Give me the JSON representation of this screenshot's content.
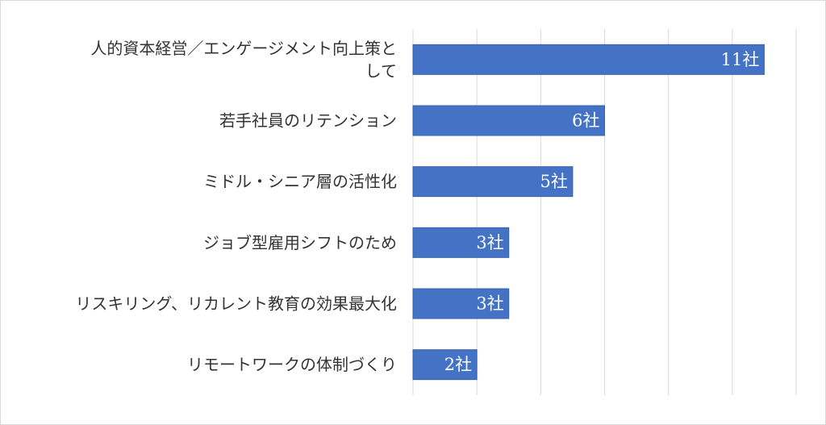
{
  "chart_data": {
    "type": "bar",
    "orientation": "horizontal",
    "title": "",
    "xlabel": "",
    "ylabel": "",
    "categories": [
      "人的資本経営／エンゲージメント向上策として",
      "若手社員のリテンション",
      "ミドル・シニア層の活性化",
      "ジョブ型雇用シフトのため",
      "リスキリング、リカレント教育の効果最大化",
      "リモートワークの体制づくり"
    ],
    "category_lines": [
      [
        "人的資本経営／エンゲージメント向上策と",
        "して"
      ],
      [
        "若手社員のリテンション"
      ],
      [
        "ミドル・シニア層の活性化"
      ],
      [
        "ジョブ型雇用シフトのため"
      ],
      [
        "リスキリング、リカレント教育の効果最大化"
      ],
      [
        "リモートワークの体制づくり"
      ]
    ],
    "values": [
      11,
      6,
      5,
      3,
      3,
      2
    ],
    "data_labels": [
      "11社",
      "6社",
      "5社",
      "3社",
      "3社",
      "2社"
    ],
    "xlim": [
      0,
      12
    ],
    "grid": true,
    "legend": "none",
    "bar_color": "#4472c4"
  }
}
